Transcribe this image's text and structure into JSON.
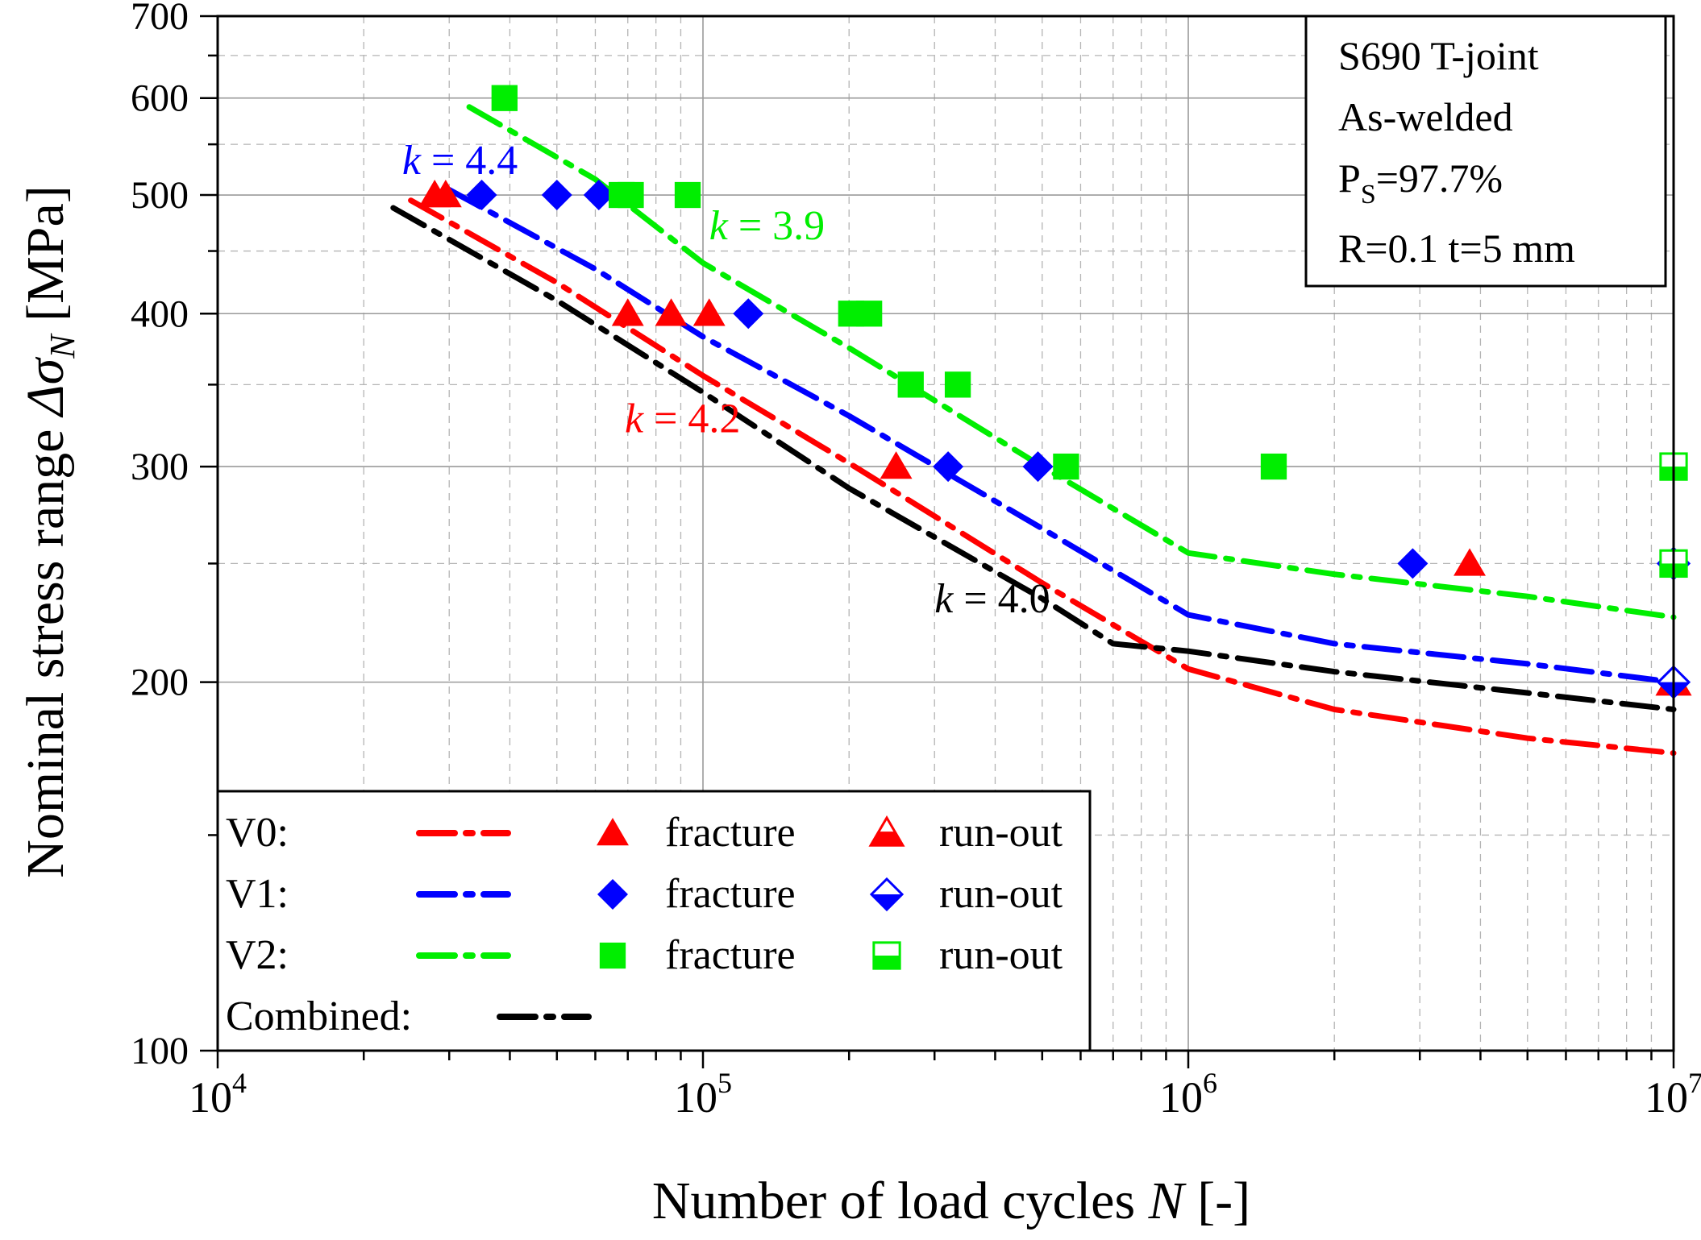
{
  "chart_data": {
    "type": "scatter",
    "xscale": "log",
    "yscale": "log",
    "xlim": [
      10000,
      10000000
    ],
    "ylim": [
      100,
      700
    ],
    "xlabel_main": "Number of load cycles ",
    "xlabel_italic": "N",
    "xlabel_tail": " [-]",
    "ylabel_main": "Nominal stress range ",
    "ylabel_italic": "Δσ",
    "ylabel_sub": "N",
    "ylabel_tail": " [MPa]",
    "x_ticks": [
      {
        "value": 10000,
        "base": "10",
        "exp": "4"
      },
      {
        "value": 100000,
        "base": "10",
        "exp": "5"
      },
      {
        "value": 1000000,
        "base": "10",
        "exp": "6"
      },
      {
        "value": 10000000,
        "base": "10",
        "exp": "7"
      }
    ],
    "y_ticks": [
      {
        "value": 100,
        "label": "100"
      },
      {
        "value": 200,
        "label": "200"
      },
      {
        "value": 300,
        "label": "300"
      },
      {
        "value": 400,
        "label": "400"
      },
      {
        "value": 500,
        "label": "500"
      },
      {
        "value": 600,
        "label": "600"
      },
      {
        "value": 700,
        "label": "700"
      }
    ],
    "grid": true,
    "info_box": {
      "line1": "S690  T-joint",
      "line2": "As-welded",
      "line3_main": "P",
      "line3_sub": "S",
      "line3_tail": "=97.7%",
      "line4": "R=0.1   t=5 mm"
    },
    "annotations": [
      {
        "italic": "k",
        "text": " = 4.4",
        "color": "#0000ff",
        "x": 24000,
        "y": 520
      },
      {
        "italic": "k",
        "text": " = 3.9",
        "color": "#00ee00",
        "x": 103000,
        "y": 460
      },
      {
        "italic": "k",
        "text": " = 4.2",
        "color": "#ff0000",
        "x": 69000,
        "y": 320
      },
      {
        "italic": "k",
        "text": " = 4.0",
        "color": "#000000",
        "x": 300000,
        "y": 228
      }
    ],
    "series": [
      {
        "name": "V0",
        "color": "#ff0000",
        "marker": "triangle",
        "fracture": [
          [
            28000,
            500
          ],
          [
            29500,
            500
          ],
          [
            70000,
            400
          ],
          [
            86000,
            400
          ],
          [
            103000,
            400
          ],
          [
            250000,
            300
          ],
          [
            3800000,
            250
          ]
        ],
        "runout": [
          [
            10000000,
            200
          ]
        ],
        "curve": [
          [
            25000,
            495
          ],
          [
            50000,
            424
          ],
          [
            100000,
            356
          ],
          [
            200000,
            302
          ],
          [
            500000,
            241
          ],
          [
            1000000,
            205
          ],
          [
            2000000,
            190
          ],
          [
            5000000,
            180
          ],
          [
            10000000,
            175
          ]
        ]
      },
      {
        "name": "V1",
        "color": "#0000ff",
        "marker": "diamond",
        "fracture": [
          [
            35000,
            500
          ],
          [
            50000,
            500
          ],
          [
            61000,
            500
          ],
          [
            124000,
            400
          ],
          [
            320000,
            300
          ],
          [
            490000,
            300
          ],
          [
            2900000,
            250
          ]
        ],
        "runout": [
          [
            10000000,
            250
          ],
          [
            10000000,
            200
          ]
        ],
        "curve": [
          [
            30000,
            505
          ],
          [
            60000,
            435
          ],
          [
            100000,
            383
          ],
          [
            200000,
            330
          ],
          [
            500000,
            267
          ],
          [
            1000000,
            227
          ],
          [
            2000000,
            215
          ],
          [
            5000000,
            207
          ],
          [
            10000000,
            200
          ]
        ]
      },
      {
        "name": "V2",
        "color": "#00ee00",
        "marker": "square",
        "fracture": [
          [
            39000,
            600
          ],
          [
            68000,
            500
          ],
          [
            71000,
            500
          ],
          [
            93000,
            500
          ],
          [
            202000,
            400
          ],
          [
            220000,
            400
          ],
          [
            268000,
            350
          ],
          [
            335000,
            350
          ],
          [
            560000,
            300
          ],
          [
            1500000,
            300
          ]
        ],
        "runout": [
          [
            10000000,
            300
          ],
          [
            10000000,
            250
          ]
        ],
        "curve": [
          [
            33000,
            590
          ],
          [
            60000,
            515
          ],
          [
            100000,
            440
          ],
          [
            200000,
            375
          ],
          [
            500000,
            300
          ],
          [
            1000000,
            255
          ],
          [
            2000000,
            245
          ],
          [
            5000000,
            235
          ],
          [
            10000000,
            226
          ]
        ]
      },
      {
        "name": "Combined",
        "color": "#000000",
        "marker": "none",
        "fracture": [],
        "runout": [],
        "curve": [
          [
            23000,
            488
          ],
          [
            50000,
            410
          ],
          [
            100000,
            345
          ],
          [
            200000,
            288
          ],
          [
            500000,
            234
          ],
          [
            700000,
            215
          ],
          [
            1000000,
            212
          ],
          [
            2000000,
            204
          ],
          [
            5000000,
            196
          ],
          [
            10000000,
            190
          ]
        ]
      }
    ],
    "legend": {
      "placement": "bottom-left",
      "rows": [
        {
          "label": "V0:",
          "color": "#ff0000",
          "marker": "triangle",
          "fracture_label": "fracture",
          "runout_label": "run-out"
        },
        {
          "label": "V1:",
          "color": "#0000ff",
          "marker": "diamond",
          "fracture_label": "fracture",
          "runout_label": "run-out"
        },
        {
          "label": "V2:",
          "color": "#00ee00",
          "marker": "square",
          "fracture_label": "fracture",
          "runout_label": "run-out"
        },
        {
          "label": "Combined:",
          "color": "#000000",
          "marker": "none",
          "fracture_label": "",
          "runout_label": ""
        }
      ]
    }
  }
}
